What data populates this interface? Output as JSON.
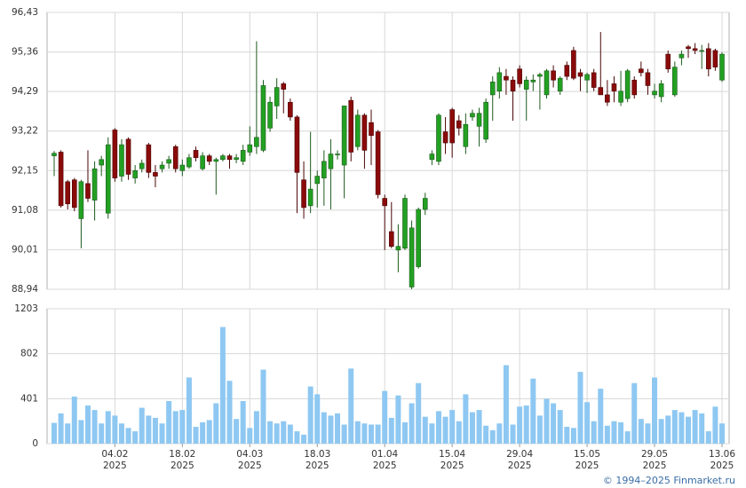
{
  "chart_data": {
    "type": "candlestick",
    "ylim": [
      88.94,
      96.43
    ],
    "yticks": [
      {
        "value": 88.94,
        "label": "88,94"
      },
      {
        "value": 90.01,
        "label": "90,01"
      },
      {
        "value": 91.08,
        "label": "91,08"
      },
      {
        "value": 92.15,
        "label": "92,15"
      },
      {
        "value": 93.22,
        "label": "93,22"
      },
      {
        "value": 94.29,
        "label": "94,29"
      },
      {
        "value": 95.36,
        "label": "95,36"
      },
      {
        "value": 96.43,
        "label": "96,43"
      }
    ],
    "y2lim": [
      0,
      1203
    ],
    "y2ticks": [
      0,
      401,
      802,
      1203
    ],
    "grid": true,
    "up_color": "#22a022",
    "down_color": "#8b0a0a",
    "volume_color": "#8ec8f2",
    "categories": [
      null,
      null,
      null,
      null,
      null,
      null,
      null,
      null,
      null,
      "04.02",
      null,
      null,
      null,
      null,
      null,
      null,
      null,
      null,
      null,
      "18.02",
      null,
      null,
      null,
      null,
      null,
      null,
      null,
      null,
      null,
      "04.03",
      null,
      null,
      null,
      null,
      null,
      null,
      null,
      null,
      null,
      "18.03",
      null,
      null,
      null,
      null,
      null,
      null,
      null,
      null,
      null,
      "01.04",
      null,
      null,
      null,
      null,
      null,
      null,
      null,
      null,
      null,
      "15.04",
      null,
      null,
      null,
      null,
      null,
      null,
      null,
      null,
      null,
      "29.04",
      null,
      null,
      null,
      null,
      null,
      null,
      null,
      null,
      null,
      "15.05",
      null,
      null,
      null,
      null,
      null,
      null,
      null,
      null,
      null,
      "29.05",
      null,
      null,
      null,
      null,
      null,
      null,
      null,
      null,
      null,
      "13.06"
    ],
    "category_years": [
      null,
      null,
      null,
      null,
      null,
      null,
      null,
      null,
      null,
      "2025",
      null,
      null,
      null,
      null,
      null,
      null,
      null,
      null,
      null,
      "2025",
      null,
      null,
      null,
      null,
      null,
      null,
      null,
      null,
      null,
      "2025",
      null,
      null,
      null,
      null,
      null,
      null,
      null,
      null,
      null,
      "2025",
      null,
      null,
      null,
      null,
      null,
      null,
      null,
      null,
      null,
      "2025",
      null,
      null,
      null,
      null,
      null,
      null,
      null,
      null,
      null,
      "2025",
      null,
      null,
      null,
      null,
      null,
      null,
      null,
      null,
      null,
      "2025",
      null,
      null,
      null,
      null,
      null,
      null,
      null,
      null,
      null,
      "2025",
      null,
      null,
      null,
      null,
      null,
      null,
      null,
      null,
      null,
      "2025",
      null,
      null,
      null,
      null,
      null,
      null,
      null,
      null,
      null,
      "2025"
    ],
    "open": [
      92.55,
      92.65,
      91.85,
      91.9,
      90.85,
      91.8,
      91.35,
      92.3,
      91.0,
      93.25,
      92.0,
      93.0,
      91.95,
      92.2,
      92.85,
      92.1,
      92.2,
      92.35,
      92.8,
      92.15,
      92.25,
      92.7,
      92.2,
      92.55,
      92.4,
      92.45,
      92.55,
      92.45,
      92.4,
      92.65,
      92.8,
      92.7,
      93.3,
      93.9,
      94.5,
      94.0,
      93.6,
      91.9,
      91.2,
      91.8,
      91.95,
      92.2,
      92.6,
      92.3,
      94.05,
      92.8,
      93.65,
      93.45,
      93.2,
      91.4,
      90.5,
      90.0,
      90.05,
      89.0,
      89.55,
      91.1,
      92.45,
      92.4,
      93.2,
      93.8,
      93.5,
      92.8,
      93.6,
      93.35,
      93.0,
      94.2,
      94.3,
      94.7,
      94.6,
      94.9,
      94.35,
      94.55,
      94.7,
      94.2,
      94.85,
      94.3,
      95.0,
      95.4,
      94.8,
      94.6,
      94.8,
      94.4,
      94.2,
      94.5,
      94.0,
      94.1,
      94.6,
      94.9,
      94.8,
      94.2,
      94.15,
      95.3,
      94.2,
      95.2,
      95.5,
      95.45,
      95.4,
      95.45,
      95.4,
      94.6
    ],
    "high": [
      92.68,
      92.7,
      91.9,
      91.95,
      91.9,
      92.7,
      92.4,
      92.55,
      93.05,
      93.3,
      93.0,
      93.05,
      92.3,
      92.45,
      92.9,
      92.3,
      92.4,
      92.55,
      92.85,
      92.45,
      92.6,
      92.8,
      92.65,
      92.6,
      92.5,
      92.6,
      92.6,
      92.6,
      92.85,
      93.35,
      95.65,
      94.6,
      94.15,
      94.65,
      94.55,
      94.1,
      93.65,
      92.4,
      93.2,
      92.15,
      92.7,
      93.0,
      92.7,
      93.9,
      94.15,
      93.8,
      93.7,
      93.8,
      93.25,
      91.5,
      91.3,
      90.7,
      91.5,
      90.8,
      91.15,
      91.55,
      92.7,
      93.7,
      93.6,
      93.85,
      93.65,
      93.7,
      93.8,
      93.85,
      94.1,
      94.7,
      94.95,
      94.9,
      94.7,
      95.0,
      94.7,
      94.75,
      94.8,
      94.9,
      95.0,
      94.7,
      95.1,
      95.5,
      94.9,
      94.8,
      94.9,
      95.9,
      94.6,
      94.7,
      94.85,
      94.9,
      94.7,
      95.1,
      94.9,
      94.5,
      94.6,
      95.4,
      95.1,
      95.4,
      95.55,
      95.6,
      95.55,
      95.6,
      95.45,
      95.35
    ],
    "low": [
      92.0,
      91.15,
      91.1,
      91.05,
      90.05,
      91.3,
      90.8,
      92.0,
      90.85,
      91.85,
      91.85,
      91.9,
      91.8,
      92.1,
      91.95,
      91.7,
      92.1,
      92.2,
      92.1,
      92.0,
      92.2,
      92.4,
      92.15,
      92.3,
      91.5,
      92.4,
      92.2,
      92.35,
      92.3,
      92.55,
      92.6,
      92.65,
      93.2,
      93.55,
      93.7,
      93.5,
      91.0,
      90.85,
      91.0,
      91.15,
      91.2,
      91.1,
      92.45,
      91.4,
      92.4,
      92.7,
      92.2,
      92.3,
      91.4,
      90.0,
      90.05,
      89.4,
      90.0,
      88.94,
      89.5,
      90.95,
      92.3,
      92.3,
      92.6,
      92.5,
      93.1,
      92.6,
      93.5,
      92.8,
      92.9,
      93.5,
      94.1,
      94.2,
      93.5,
      94.4,
      93.5,
      94.3,
      93.8,
      94.1,
      94.4,
      94.2,
      94.6,
      94.6,
      94.3,
      94.25,
      94.3,
      94.2,
      93.9,
      94.0,
      93.9,
      94.0,
      94.1,
      94.7,
      94.2,
      94.1,
      94.0,
      94.8,
      94.15,
      95.0,
      95.2,
      95.3,
      94.9,
      94.7,
      94.85,
      94.55
    ],
    "close": [
      92.62,
      91.2,
      91.25,
      91.15,
      91.85,
      91.4,
      92.2,
      92.45,
      92.85,
      91.95,
      92.85,
      92.05,
      92.15,
      92.35,
      92.1,
      92.0,
      92.3,
      92.45,
      92.2,
      92.3,
      92.5,
      92.5,
      92.55,
      92.4,
      92.45,
      92.55,
      92.45,
      92.5,
      92.7,
      92.85,
      93.05,
      94.45,
      94.0,
      94.4,
      94.35,
      93.6,
      92.1,
      91.15,
      91.65,
      92.0,
      92.4,
      92.6,
      92.6,
      93.9,
      92.65,
      93.65,
      92.7,
      93.1,
      91.5,
      91.2,
      90.1,
      90.1,
      91.4,
      90.6,
      91.1,
      91.4,
      92.6,
      93.65,
      92.9,
      92.9,
      93.3,
      93.4,
      93.7,
      93.7,
      94.0,
      94.55,
      94.8,
      94.6,
      94.3,
      94.5,
      94.6,
      94.6,
      94.75,
      94.85,
      94.6,
      94.65,
      94.7,
      94.65,
      94.7,
      94.75,
      94.4,
      94.2,
      94.0,
      94.3,
      94.3,
      94.85,
      94.2,
      94.8,
      94.45,
      94.3,
      94.5,
      94.9,
      94.95,
      95.3,
      95.45,
      95.4,
      95.4,
      94.9,
      94.95,
      95.3
    ],
    "volume": [
      185,
      270,
      180,
      420,
      210,
      340,
      300,
      180,
      290,
      250,
      180,
      140,
      110,
      320,
      250,
      230,
      180,
      380,
      290,
      300,
      590,
      150,
      190,
      210,
      360,
      1040,
      560,
      220,
      380,
      140,
      290,
      660,
      200,
      180,
      200,
      170,
      110,
      80,
      510,
      440,
      280,
      250,
      270,
      170,
      670,
      200,
      180,
      170,
      170,
      470,
      230,
      430,
      190,
      360,
      540,
      240,
      180,
      290,
      240,
      300,
      200,
      440,
      280,
      300,
      160,
      120,
      180,
      700,
      170,
      330,
      340,
      580,
      250,
      400,
      360,
      300,
      150,
      140,
      640,
      370,
      200,
      490,
      160,
      200,
      190,
      110,
      540,
      220,
      180,
      590,
      220,
      250,
      300,
      280,
      240,
      300,
      270,
      110,
      330,
      180
    ],
    "footer": "© 1994–2025 Finmarket.ru"
  }
}
